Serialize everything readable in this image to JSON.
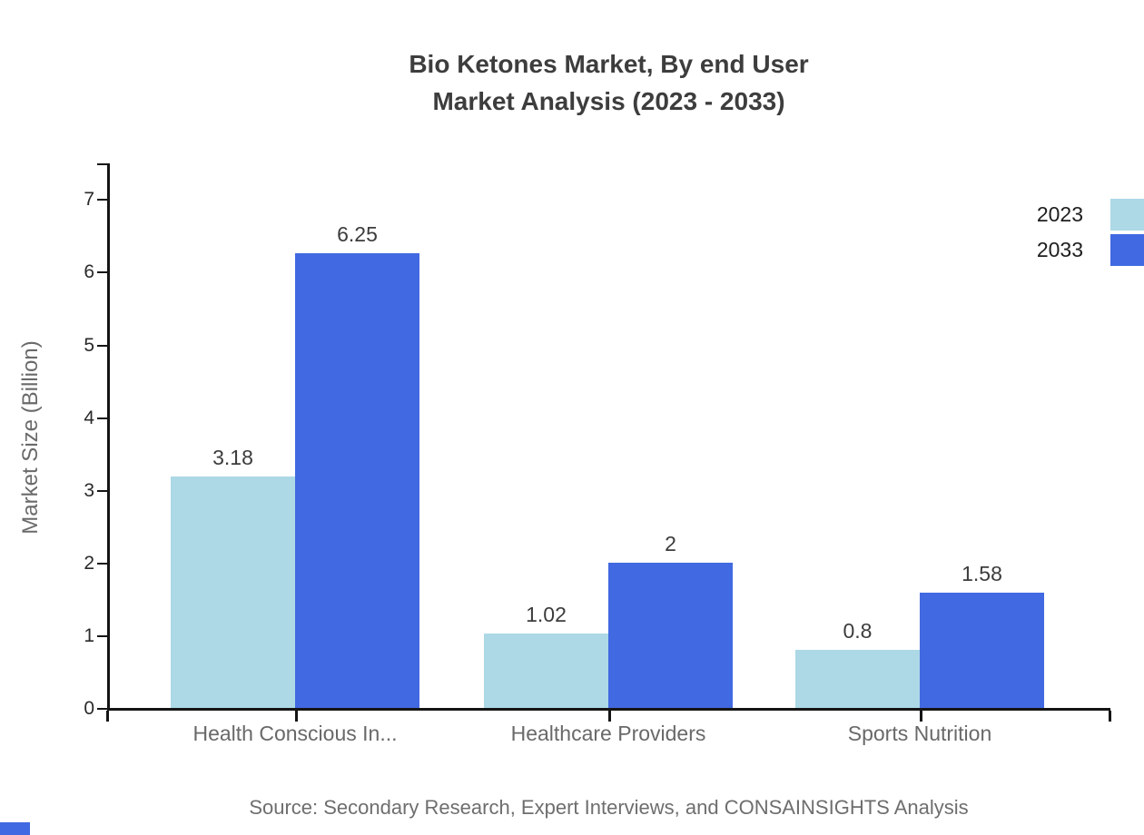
{
  "chart_data": {
    "type": "bar",
    "title_line1": "Bio Ketones Market, By end User",
    "title_line2": "Market Analysis (2023 - 2033)",
    "categories": [
      "Health Conscious In...",
      "Healthcare Providers",
      "Sports Nutrition"
    ],
    "series": [
      {
        "name": "2023",
        "color": "#ADD8E6",
        "values": [
          3.18,
          1.02,
          0.8
        ]
      },
      {
        "name": "2033",
        "color": "#4169E1",
        "values": [
          6.25,
          2,
          1.58
        ]
      }
    ],
    "value_labels": [
      [
        "3.18",
        "1.02",
        "0.8"
      ],
      [
        "6.25",
        "2",
        "1.58"
      ]
    ],
    "xlabel": "",
    "ylabel": "Market Size (Billion)",
    "ylim": [
      0,
      7.5
    ],
    "yticks": [
      0,
      1,
      2,
      3,
      4,
      5,
      6,
      7
    ],
    "grid": false,
    "legend_position": "top-right",
    "colors": {
      "series_2023": "#ADD8E6",
      "series_2033": "#4169E1",
      "axis": "#151515",
      "title_text": "#3d3d3d",
      "category_text": "#696969",
      "value_text": "#3c3c3c",
      "brand_mark": "#4169E1"
    },
    "source": "Source: Secondary Research, Expert Interviews, and CONSAINSIGHTS Analysis"
  }
}
